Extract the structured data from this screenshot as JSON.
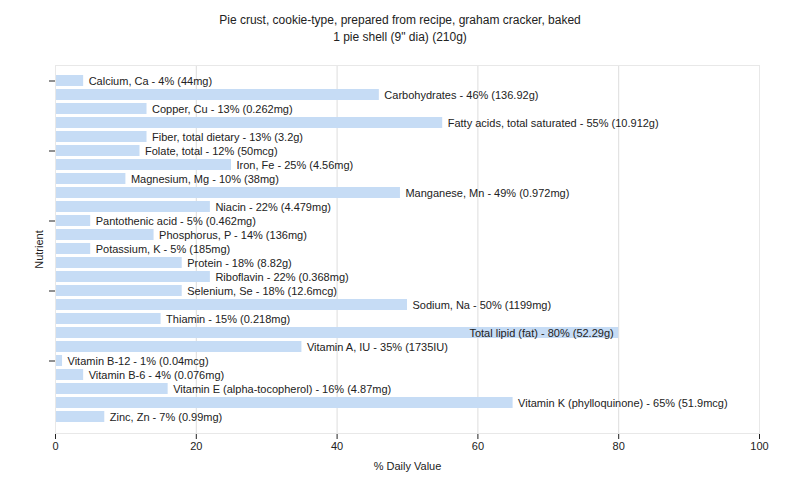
{
  "chart_data": {
    "type": "bar",
    "title": "Pie crust, cookie-type, prepared from recipe, graham cracker, baked",
    "subtitle": "1 pie shell (9\" dia) (210g)",
    "orientation": "horizontal",
    "x_label": "% Daily Value",
    "y_label": "Nutrient",
    "categories": [
      "Calcium, Ca",
      "Carbohydrates",
      "Copper, Cu",
      "Fatty acids, total saturated",
      "Fiber, total dietary",
      "Folate, total",
      "Iron, Fe",
      "Magnesium, Mg",
      "Manganese, Mn",
      "Niacin",
      "Pantothenic acid",
      "Phosphorus, P",
      "Potassium, K",
      "Protein",
      "Riboflavin",
      "Selenium, Se",
      "Sodium, Na",
      "Thiamin",
      "Total lipid (fat)",
      "Vitamin A, IU",
      "Vitamin B-12",
      "Vitamin B-6",
      "Vitamin E (alpha-tocopherol)",
      "Vitamin K (phylloquinone)",
      "Zinc, Zn"
    ],
    "values": [
      4,
      46,
      13,
      55,
      13,
      12,
      25,
      10,
      49,
      22,
      5,
      14,
      5,
      18,
      22,
      18,
      50,
      15,
      80,
      35,
      1,
      4,
      16,
      65,
      7
    ],
    "value_labels": [
      "Calcium, Ca - 4% (44mg)",
      "Carbohydrates - 46% (136.92g)",
      "Copper, Cu - 13% (0.262mg)",
      "Fatty acids, total saturated - 55% (10.912g)",
      "Fiber, total dietary - 13% (3.2g)",
      "Folate, total - 12% (50mcg)",
      "Iron, Fe - 25% (4.56mg)",
      "Magnesium, Mg - 10% (38mg)",
      "Manganese, Mn - 49% (0.972mg)",
      "Niacin - 22% (4.479mg)",
      "Pantothenic acid - 5% (0.462mg)",
      "Phosphorus, P - 14% (136mg)",
      "Potassium, K - 5% (185mg)",
      "Protein - 18% (8.82g)",
      "Riboflavin - 22% (0.368mg)",
      "Selenium, Se - 18% (12.6mcg)",
      "Sodium, Na - 50% (1199mg)",
      "Thiamin - 15% (0.218mg)",
      "Total lipid (fat) - 80% (52.29g)",
      "Vitamin A, IU - 35% (1735IU)",
      "Vitamin B-12 - 1% (0.04mcg)",
      "Vitamin B-6 - 4% (0.076mg)",
      "Vitamin E (alpha-tocopherol) - 16% (4.87mg)",
      "Vitamin K (phylloquinone) - 65% (51.9mcg)",
      "Zinc, Zn - 7% (0.99mg)"
    ],
    "data_labels": true,
    "color": "#c6dcf5",
    "xlim": [
      0,
      100
    ],
    "xticks": [
      0,
      20,
      40,
      60,
      80,
      100
    ],
    "grid": true,
    "tick_labels": "x"
  }
}
